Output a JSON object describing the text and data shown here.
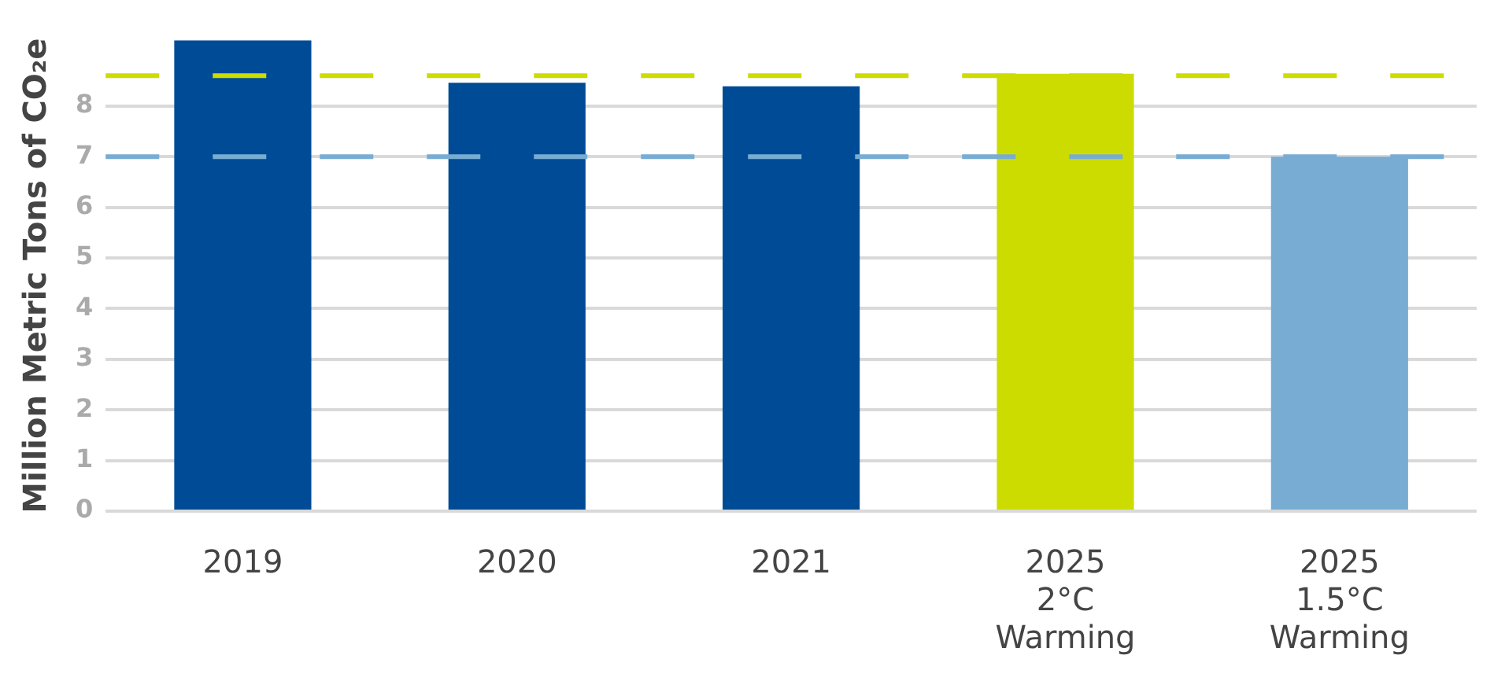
{
  "chart_data": {
    "type": "bar",
    "ylabel": "Million Metric Tons of CO₂e",
    "categories": [
      "2019",
      "2020",
      "2021",
      "2025\n2°C\nWarming",
      "2025\n1.5°C\nWarming"
    ],
    "values": [
      9.3,
      8.46,
      8.39,
      8.64,
      7.0
    ],
    "colors": [
      "#004b96",
      "#004b96",
      "#004b96",
      "#cddc00",
      "#78acd3"
    ],
    "ylim": [
      0,
      9.3
    ],
    "yticks": [
      0,
      1,
      2,
      3,
      4,
      5,
      6,
      7,
      8
    ],
    "grid": "y",
    "legend": false,
    "ref_lines": [
      {
        "axis": "y",
        "value": 8.6,
        "color": "#cddc00",
        "line_style": "dashed"
      },
      {
        "axis": "y",
        "value": 7.0,
        "color": "#78acd3",
        "line_style": "dashed"
      }
    ]
  }
}
